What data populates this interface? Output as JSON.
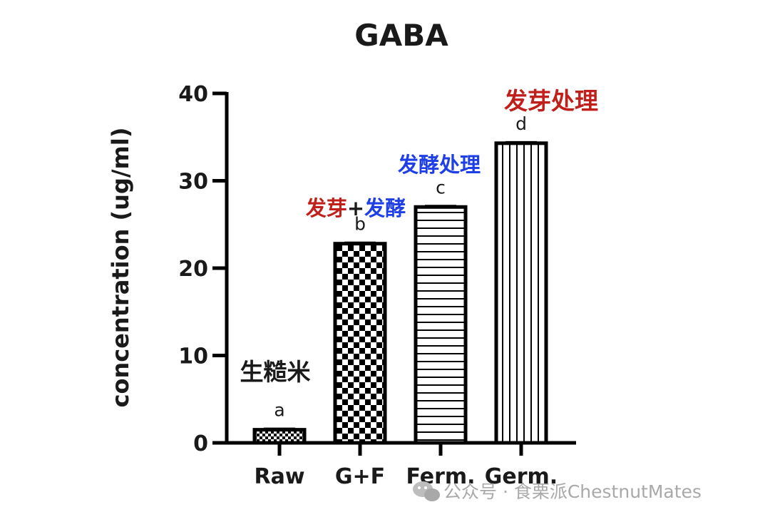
{
  "chart_data": {
    "type": "bar",
    "title": "GABA",
    "xlabel": "",
    "ylabel": "concentration (ug/ml)",
    "ylim": [
      0,
      40
    ],
    "yticks": [
      0,
      10,
      20,
      30,
      40
    ],
    "grid": false,
    "categories": [
      "Raw",
      "G+F",
      "Ferm.",
      "Germ."
    ],
    "values": [
      1.5,
      22.8,
      27.0,
      34.3
    ],
    "significance_letters": [
      "a",
      "b",
      "c",
      "d"
    ],
    "patterns": [
      "small-checker",
      "checker",
      "horizontal-lines",
      "vertical-lines"
    ],
    "annotations": [
      {
        "bar": 0,
        "parts": [
          {
            "text": "生糙米",
            "color": "#1a1a1a"
          }
        ]
      },
      {
        "bar": 1,
        "parts": [
          {
            "text": "发芽",
            "color": "#c0201c"
          },
          {
            "text": "+",
            "color": "#1a1a1a"
          },
          {
            "text": "发酵",
            "color": "#1f3fe6"
          }
        ]
      },
      {
        "bar": 2,
        "parts": [
          {
            "text": "发酵处理",
            "color": "#1f3fe6"
          }
        ]
      },
      {
        "bar": 3,
        "parts": [
          {
            "text": "发芽处理",
            "color": "#c0201c"
          }
        ]
      }
    ]
  },
  "watermark": {
    "text": "公众号 · 食栗派ChestnutMates",
    "icon": "wechat-icon"
  }
}
